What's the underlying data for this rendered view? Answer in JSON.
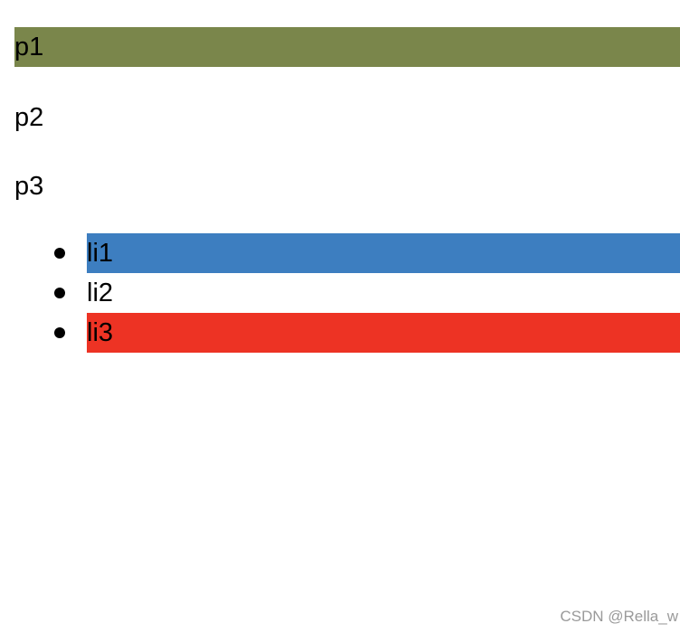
{
  "paragraphs": [
    {
      "text": "p1",
      "bg": "#7a864b"
    },
    {
      "text": "p2",
      "bg": "transparent"
    },
    {
      "text": "p3",
      "bg": "transparent"
    }
  ],
  "list": {
    "items": [
      {
        "text": "li1",
        "bg": "#3d7ec0"
      },
      {
        "text": "li2",
        "bg": "transparent"
      },
      {
        "text": "li3",
        "bg": "#ed3324"
      }
    ]
  },
  "watermark": "CSDN @Rella_w"
}
